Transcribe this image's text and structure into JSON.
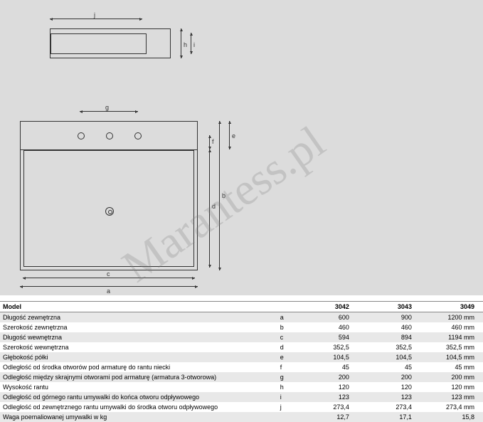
{
  "watermark": "Marantess.pl",
  "diagram": {
    "top_view": {
      "dim_j_label": "j",
      "dim_h_label": "h",
      "dim_i_label": "i"
    },
    "front_view": {
      "dim_a_label": "a",
      "dim_b_label": "b",
      "dim_c_label": "c",
      "dim_d_label": "d",
      "dim_e_label": "e",
      "dim_f_label": "f",
      "dim_g_label": "g"
    }
  },
  "spec_table": {
    "header": {
      "model_label": "Model",
      "columns": [
        "3042",
        "3043",
        "3049"
      ]
    },
    "rows": [
      {
        "name": "Długość zewnętrzna",
        "letter": "a",
        "values": [
          "600",
          "900",
          "1200 mm"
        ]
      },
      {
        "name": "Szerokość zewnętrzna",
        "letter": "b",
        "values": [
          "460",
          "460",
          "460 mm"
        ]
      },
      {
        "name": "Długość wewnętrzna",
        "letter": "c",
        "values": [
          "594",
          "894",
          "1194 mm"
        ]
      },
      {
        "name": "Szerokość wewnętrzna",
        "letter": "d",
        "values": [
          "352,5",
          "352,5",
          "352,5 mm"
        ]
      },
      {
        "name": "Głębokość półki",
        "letter": "e",
        "values": [
          "104,5",
          "104,5",
          "104,5 mm"
        ]
      },
      {
        "name": "Odległość od środka otworów pod armaturę do rantu niecki",
        "letter": "f",
        "values": [
          "45",
          "45",
          "45 mm"
        ]
      },
      {
        "name": "Odległość między skrajnymi otworami pod armaturę (armatura 3-otworowa)",
        "letter": "g",
        "values": [
          "200",
          "200",
          "200 mm"
        ]
      },
      {
        "name": "Wysokość rantu",
        "letter": "h",
        "values": [
          "120",
          "120",
          "120 mm"
        ]
      },
      {
        "name": "Odległość od górnego rantu umywalki do końca otworu odpływowego",
        "letter": "i",
        "values": [
          "123",
          "123",
          "123 mm"
        ]
      },
      {
        "name": "Odległość od zewnętrznego rantu umywalki do środka otworu odpływowego",
        "letter": "j",
        "values": [
          "273,4",
          "273,4",
          "273,4 mm"
        ]
      },
      {
        "name": "Waga poemaliowanej umywalki w kg",
        "letter": "",
        "values": [
          "12,7",
          "17,1",
          "15,8"
        ]
      }
    ],
    "striping": {
      "odd_bg": "#e8e8e8",
      "even_bg": "#ffffff"
    }
  }
}
